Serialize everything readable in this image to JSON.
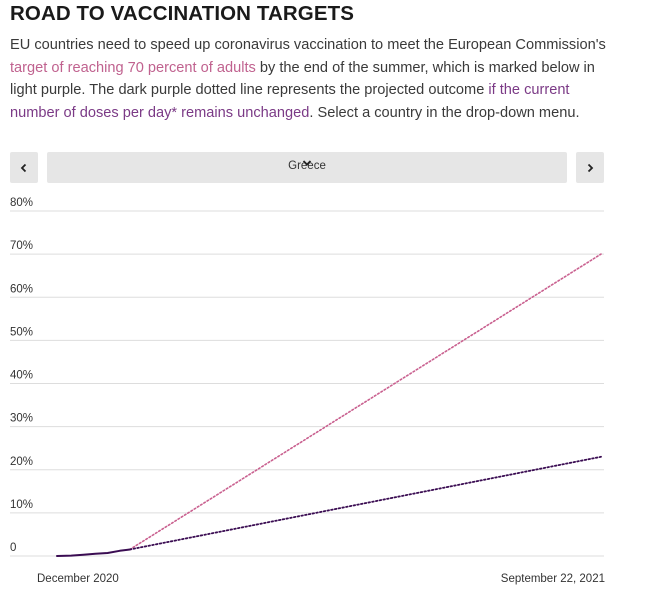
{
  "header": {
    "title": "ROAD TO VACCINATION TARGETS",
    "intro_1": "EU countries need to speed up coronavirus vaccination to meet the European Commission's ",
    "intro_link_1": "target of reaching 70 percent of adults",
    "intro_2": " by the end of the summer, which is marked below in light purple. The dark purple dotted line represents the projected outcome ",
    "intro_link_2": "if the current number of doses per day* remains unchanged",
    "intro_3": ". Select a country in the drop-down menu."
  },
  "controls": {
    "prev_icon": "chevron-left-icon",
    "next_icon": "chevron-right-icon",
    "dropdown_icon": "chevron-down-icon",
    "selected_country": "Greece"
  },
  "colors": {
    "target_line": "#c9608f",
    "projection_line": "#3a0c52",
    "actual_line": "#3a0c52",
    "gridline": "#dddddd",
    "link_pink": "#c0628f",
    "link_purple": "#7b3a86"
  },
  "chart_data": {
    "type": "line",
    "title": "",
    "xlabel": "",
    "ylabel": "",
    "x_range": [
      "December 2020",
      "September 22, 2021"
    ],
    "x_tick_labels": [
      "December 2020",
      "September 22, 2021"
    ],
    "ylim": [
      0,
      80
    ],
    "y_ticks": [
      0,
      10,
      20,
      30,
      40,
      50,
      60,
      70,
      80
    ],
    "y_tick_labels": [
      "0",
      "10%",
      "20%",
      "30%",
      "40%",
      "50%",
      "60%",
      "70%",
      "80%"
    ],
    "grid": true,
    "series": [
      {
        "style": "solid",
        "points": [
          [
            "2020-12-27",
            0
          ],
          [
            "2021-01-03",
            0.1
          ],
          [
            "2021-01-09",
            0.3
          ],
          [
            "2021-01-15",
            0.5
          ],
          [
            "2021-01-21",
            0.7
          ],
          [
            "2021-01-27",
            1.2
          ],
          [
            "2021-02-01",
            1.5
          ]
        ]
      },
      {
        "style": "dotted",
        "points": [
          [
            "2021-02-01",
            1.5
          ],
          [
            "2021-09-22",
            70
          ]
        ]
      },
      {
        "style": "dotted",
        "points": [
          [
            "2021-02-01",
            1.5
          ],
          [
            "2021-09-22",
            23
          ]
        ]
      }
    ]
  }
}
